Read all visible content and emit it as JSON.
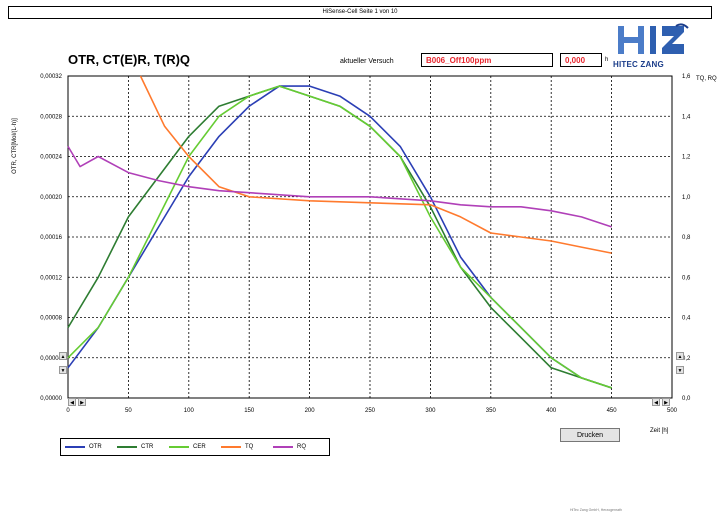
{
  "window": {
    "title": "HiSense-Cell Seite 1 von 10"
  },
  "header": {
    "chart_title": "OTR, CT(E)R, T(R)Q",
    "experiment_label": "aktueller Versuch",
    "experiment_value": "B006_Off100ppm",
    "time_value": "0,000",
    "time_unit": "h"
  },
  "logo": {
    "text": "HITEC ZANG"
  },
  "print_button": {
    "label": "Drucken"
  },
  "footer": {
    "text": "HiTec Zang GmbH, Herzogenrath"
  },
  "colors": {
    "OTR": "#2b3fb5",
    "CTR": "#2e7d32",
    "CER": "#66cc33",
    "TQ": "#ff7a2e",
    "RQ": "#b040b8"
  },
  "chart_data": {
    "type": "line",
    "title": "OTR, CT(E)R, T(R)Q",
    "xlabel": "Zeit [h]",
    "ylabel_left": "OTR, CTR[Mol/(L·h)]",
    "ylabel_right": "TQ, RQ",
    "xlim": [
      0,
      500
    ],
    "ylim_left": [
      0,
      0.00032
    ],
    "ylim_right": [
      0,
      1.6
    ],
    "x_ticks": [
      "0",
      "50",
      "100",
      "150",
      "200",
      "250",
      "300",
      "350",
      "400",
      "450",
      "500"
    ],
    "y_left_ticks": [
      "0,00000",
      "0,00004",
      "0,00008",
      "0,00012",
      "0,00016",
      "0,00020",
      "0,00024",
      "0,00028",
      "0,00032"
    ],
    "y_right_ticks": [
      "0,0",
      "0,2",
      "0,4",
      "0,6",
      "0,8",
      "1,0",
      "1,2",
      "1,4",
      "1,6"
    ],
    "grid": true,
    "legend": "bottom-left",
    "series": [
      {
        "name": "OTR",
        "axis": "left",
        "x": [
          0,
          25,
          50,
          75,
          100,
          125,
          150,
          175,
          200,
          225,
          250,
          275,
          300,
          325,
          350,
          375,
          400,
          425,
          450
        ],
        "values": [
          3e-05,
          7e-05,
          0.00012,
          0.00017,
          0.00022,
          0.00026,
          0.00029,
          0.00031,
          0.00031,
          0.0003,
          0.00028,
          0.00025,
          0.0002,
          0.00014,
          0.0001,
          7e-05,
          4e-05,
          2e-05,
          1e-05
        ]
      },
      {
        "name": "CTR",
        "axis": "left",
        "x": [
          0,
          25,
          50,
          75,
          100,
          125,
          150,
          175,
          200,
          225,
          250,
          275,
          300,
          325,
          350,
          375,
          400,
          425,
          450
        ],
        "values": [
          7e-05,
          0.00012,
          0.00018,
          0.00022,
          0.00026,
          0.00029,
          0.0003,
          0.00031,
          0.0003,
          0.00029,
          0.00027,
          0.00024,
          0.00019,
          0.00013,
          9e-05,
          6e-05,
          3e-05,
          2e-05,
          1e-05
        ]
      },
      {
        "name": "CER",
        "axis": "left",
        "x": [
          0,
          25,
          50,
          75,
          100,
          125,
          150,
          175,
          200,
          225,
          250,
          275,
          300,
          325,
          350,
          375,
          400,
          425,
          450
        ],
        "values": [
          4e-05,
          7e-05,
          0.00012,
          0.00018,
          0.00024,
          0.00028,
          0.0003,
          0.00031,
          0.0003,
          0.00029,
          0.00027,
          0.00024,
          0.00018,
          0.00013,
          0.0001,
          7e-05,
          4e-05,
          2e-05,
          1e-05
        ]
      },
      {
        "name": "TQ",
        "axis": "right",
        "x": [
          60,
          80,
          100,
          125,
          150,
          200,
          250,
          300,
          325,
          350,
          375,
          400,
          425,
          450
        ],
        "values": [
          1.6,
          1.35,
          1.2,
          1.05,
          1.0,
          0.98,
          0.97,
          0.96,
          0.9,
          0.82,
          0.8,
          0.78,
          0.75,
          0.72
        ]
      },
      {
        "name": "RQ",
        "axis": "right",
        "x": [
          0,
          10,
          25,
          50,
          75,
          100,
          125,
          150,
          200,
          250,
          300,
          325,
          350,
          375,
          400,
          425,
          450
        ],
        "values": [
          1.25,
          1.15,
          1.2,
          1.12,
          1.08,
          1.05,
          1.03,
          1.02,
          1.0,
          1.0,
          0.98,
          0.96,
          0.95,
          0.95,
          0.93,
          0.9,
          0.85
        ]
      }
    ]
  }
}
